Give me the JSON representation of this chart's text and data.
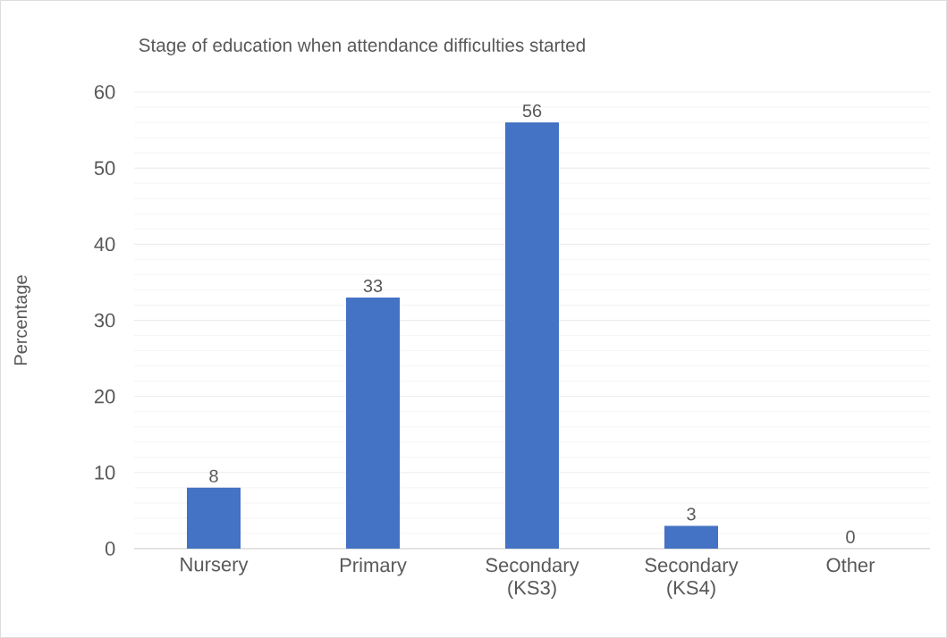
{
  "chart_data": {
    "type": "bar",
    "title": "Stage of education when attendance difficulties started",
    "ylabel": "Percentage",
    "categories": [
      "Nursery",
      "Primary",
      "Secondary (KS3)",
      "Secondary (KS4)",
      "Other"
    ],
    "values": [
      8,
      33,
      56,
      3,
      0
    ],
    "color": "#4472c4",
    "ylim": [
      0,
      60
    ],
    "yticks": [
      0,
      10,
      20,
      30,
      40,
      50,
      60
    ],
    "grid": "y",
    "data_labels": true
  }
}
